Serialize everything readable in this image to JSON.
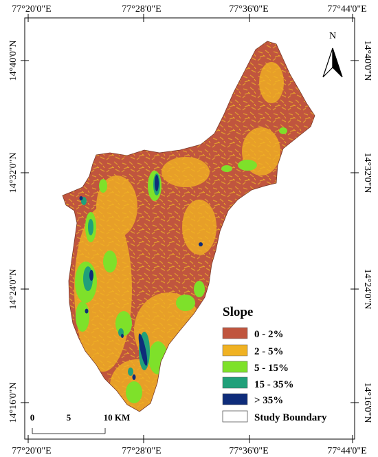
{
  "map": {
    "top_ticks": [
      "77°20'0\"E",
      "77°28'0\"E",
      "77°36'0\"E",
      "77°44'0\"E"
    ],
    "bottom_ticks": [
      "77°20'0\"E",
      "77°28'0\"E",
      "77°36'0\"E",
      "77°44'0\"E"
    ],
    "left_ticks": [
      "14°40'0\"N",
      "14°32'0\"N",
      "14°24'0\"N",
      "14°16'0\"N"
    ],
    "right_ticks": [
      "14°40'0\"N",
      "14°32'0\"N",
      "14°24'0\"N",
      "14°16'0\"N"
    ],
    "north_label": "N"
  },
  "legend": {
    "title": "Slope",
    "items": [
      {
        "label": "0 - 2%",
        "color": "#c0553e"
      },
      {
        "label": "2 - 5%",
        "color": "#f0b223"
      },
      {
        "label": "5 - 15%",
        "color": "#7ee12a"
      },
      {
        "label": "15 - 35%",
        "color": "#20a07a"
      },
      {
        "label": "> 35%",
        "color": "#0e2c7a"
      },
      {
        "label": "Study Boundary",
        "color": "#ffffff"
      }
    ]
  },
  "scale_bar": {
    "labels": [
      "0",
      "5",
      "10 KM"
    ]
  }
}
